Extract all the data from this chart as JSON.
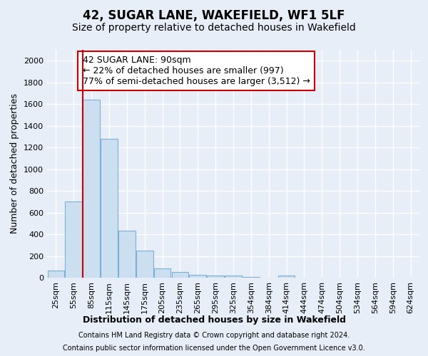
{
  "title": "42, SUGAR LANE, WAKEFIELD, WF1 5LF",
  "subtitle": "Size of property relative to detached houses in Wakefield",
  "xlabel": "Distribution of detached houses by size in Wakefield",
  "ylabel": "Number of detached properties",
  "footnote1": "Contains HM Land Registry data © Crown copyright and database right 2024.",
  "footnote2": "Contains public sector information licensed under the Open Government Licence v3.0.",
  "annotation_line1": "42 SUGAR LANE: 90sqm",
  "annotation_line2": "← 22% of detached houses are smaller (997)",
  "annotation_line3": "77% of semi-detached houses are larger (3,512) →",
  "bar_labels": [
    "25sqm",
    "55sqm",
    "85sqm",
    "115sqm",
    "145sqm",
    "175sqm",
    "205sqm",
    "235sqm",
    "265sqm",
    "295sqm",
    "325sqm",
    "354sqm",
    "384sqm",
    "414sqm",
    "444sqm",
    "474sqm",
    "504sqm",
    "534sqm",
    "564sqm",
    "594sqm",
    "624sqm"
  ],
  "bar_values": [
    65,
    700,
    1640,
    1280,
    435,
    250,
    85,
    50,
    25,
    20,
    20,
    5,
    0,
    20,
    0,
    0,
    0,
    0,
    0,
    0,
    0
  ],
  "bar_color": "#ccdff0",
  "bar_edge_color": "#7bafd4",
  "red_line_x": 1.5,
  "ylim": [
    0,
    2100
  ],
  "yticks": [
    0,
    200,
    400,
    600,
    800,
    1000,
    1200,
    1400,
    1600,
    1800,
    2000
  ],
  "background_color": "#e8eef8",
  "axes_bg_color": "#e8eef8",
  "grid_color": "#ffffff",
  "annotation_box_facecolor": "#ffffff",
  "annotation_box_edgecolor": "#cc0000",
  "red_line_color": "#cc0000",
  "title_fontsize": 12,
  "subtitle_fontsize": 10,
  "axis_label_fontsize": 9,
  "tick_fontsize": 8,
  "annotation_fontsize": 9,
  "footnote_fontsize": 7
}
